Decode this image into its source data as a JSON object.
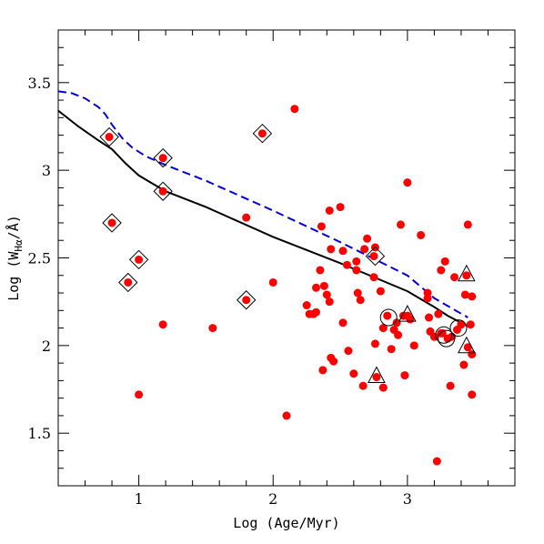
{
  "chart_data": {
    "type": "scatter",
    "title": "",
    "xlabel": "Log (Age/Myr)",
    "ylabel_prefix": "Log (W",
    "ylabel_sub": "Hα",
    "ylabel_suffix": "/Å)",
    "xlim": [
      0.4,
      3.8
    ],
    "ylim": [
      1.2,
      3.8
    ],
    "x_ticks": [
      1,
      2,
      3
    ],
    "x_tick_labels": [
      "1",
      "2",
      "3"
    ],
    "y_ticks": [
      1.5,
      2,
      2.5,
      3,
      3.5
    ],
    "y_tick_labels": [
      "1.5",
      "2",
      "2.5",
      "3",
      "3.5"
    ],
    "x_minor_step": 0.2,
    "y_minor_step": 0.1,
    "grid": false,
    "colors": {
      "points": "#ff0000",
      "dashed_line": "#0000dd",
      "solid_line": "#000000",
      "frame": "#000000"
    },
    "series": [
      {
        "kind": "line",
        "style": "solid",
        "x": [
          0.4,
          0.55,
          0.7,
          0.8,
          0.9,
          1.0,
          1.2,
          1.5,
          2.0,
          2.5,
          3.0,
          3.2,
          3.3,
          3.45
        ],
        "y": [
          3.34,
          3.25,
          3.17,
          3.12,
          3.04,
          2.97,
          2.88,
          2.79,
          2.62,
          2.47,
          2.31,
          2.22,
          2.17,
          2.11
        ]
      },
      {
        "kind": "line",
        "style": "dashed",
        "x": [
          0.4,
          0.5,
          0.6,
          0.7,
          0.75,
          0.8,
          0.88,
          0.95,
          1.05,
          1.2,
          1.5,
          2.0,
          2.5,
          3.0,
          3.2,
          3.45
        ],
        "y": [
          3.45,
          3.44,
          3.41,
          3.36,
          3.32,
          3.26,
          3.18,
          3.13,
          3.08,
          3.03,
          2.94,
          2.77,
          2.59,
          2.4,
          2.27,
          2.16
        ]
      },
      {
        "kind": "points",
        "marker": "filled-circle",
        "x": [
          0.78,
          0.8,
          0.92,
          1.0,
          1.0,
          1.18,
          1.18,
          1.18,
          1.55,
          1.8,
          1.8,
          1.92,
          2.0,
          2.1,
          2.16,
          2.25,
          2.27,
          2.3,
          2.32,
          2.32,
          2.35,
          2.36,
          2.37,
          2.38,
          2.4,
          2.42,
          2.42,
          2.43,
          2.43,
          2.45,
          2.5,
          2.52,
          2.52,
          2.55,
          2.56,
          2.6,
          2.62,
          2.62,
          2.63,
          2.65,
          2.67,
          2.68,
          2.7,
          2.75,
          2.76,
          2.76,
          2.77,
          2.8,
          2.82,
          2.82,
          2.85,
          2.88,
          2.9,
          2.92,
          2.93,
          2.95,
          2.97,
          2.98,
          3.0,
          3.0,
          3.02,
          3.05,
          3.1,
          3.15,
          3.15,
          3.16,
          3.17,
          3.2,
          3.22,
          3.23,
          3.25,
          3.25,
          3.28,
          3.3,
          3.32,
          3.33,
          3.35,
          3.37,
          3.4,
          3.42,
          3.43,
          3.44,
          3.45,
          3.45,
          3.47,
          3.48,
          3.48,
          3.48,
          2.75,
          3.26
        ],
        "y": [
          3.19,
          2.7,
          2.36,
          2.49,
          1.72,
          3.07,
          2.88,
          2.12,
          2.1,
          2.26,
          2.73,
          3.21,
          2.36,
          1.6,
          3.35,
          2.23,
          2.18,
          2.18,
          2.33,
          2.19,
          2.43,
          2.68,
          1.86,
          2.34,
          2.29,
          2.77,
          2.25,
          2.55,
          1.93,
          1.91,
          2.79,
          2.13,
          2.54,
          2.46,
          1.97,
          1.84,
          2.48,
          2.43,
          2.3,
          2.26,
          1.77,
          2.55,
          2.61,
          2.51,
          2.56,
          2.01,
          1.82,
          2.31,
          1.76,
          2.1,
          2.17,
          1.98,
          2.09,
          2.13,
          2.06,
          2.69,
          2.17,
          1.83,
          2.17,
          2.93,
          2.15,
          2.0,
          2.63,
          2.3,
          2.27,
          2.16,
          2.08,
          2.05,
          1.34,
          2.18,
          2.43,
          2.07,
          2.48,
          2.04,
          1.77,
          2.05,
          2.39,
          2.09,
          2.12,
          1.89,
          2.29,
          2.4,
          2.69,
          1.99,
          2.12,
          2.28,
          1.95,
          1.72,
          2.39,
          2.07
        ]
      },
      {
        "kind": "points",
        "marker": "open-diamond",
        "x": [
          0.78,
          0.8,
          0.92,
          1.0,
          1.18,
          1.18,
          1.8,
          1.92,
          2.76
        ],
        "y": [
          3.19,
          2.7,
          2.36,
          2.49,
          3.07,
          2.88,
          2.26,
          3.21,
          2.51
        ]
      },
      {
        "kind": "points",
        "marker": "open-triangle",
        "x": [
          2.77,
          3.0,
          3.44,
          3.44
        ],
        "y": [
          1.82,
          2.17,
          2.4,
          1.99
        ]
      },
      {
        "kind": "points",
        "marker": "open-circle",
        "x": [
          2.86,
          3.27,
          3.29,
          3.38
        ],
        "y": [
          2.16,
          2.06,
          2.04,
          2.1
        ]
      }
    ]
  }
}
